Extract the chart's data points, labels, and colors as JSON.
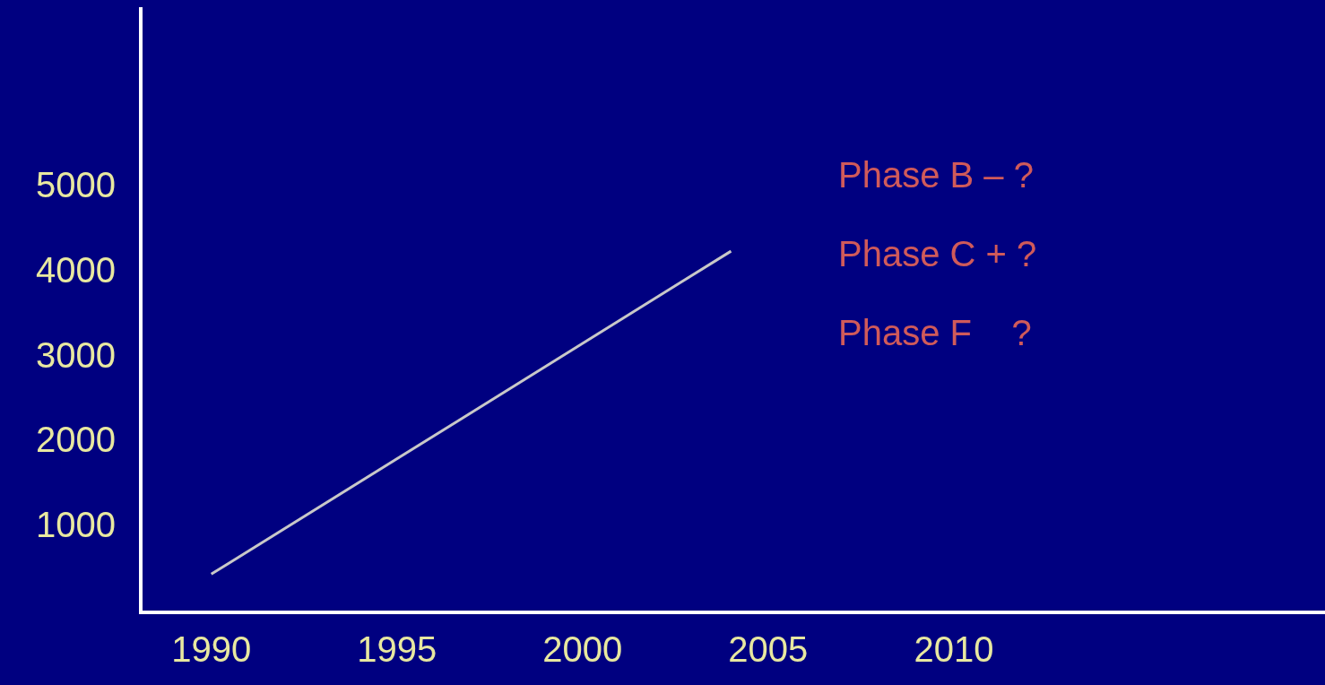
{
  "chart_data": {
    "type": "line",
    "x": [
      1990,
      2004
    ],
    "series": [
      {
        "color": "#c8c8c8",
        "values": [
          450,
          4250
        ]
      }
    ],
    "xlim": [
      1988.1,
      2020
    ],
    "xticks": [
      1990,
      1995,
      2000,
      2005,
      2010
    ],
    "ylim": [
      0,
      7100
    ],
    "yticks": [
      1000,
      2000,
      3000,
      4000,
      5000
    ],
    "annotations": [
      "Phase B – ?",
      "Phase C + ?",
      "Phase F    ?"
    ],
    "grid": false,
    "legend": false,
    "marker": "none",
    "line_style": "solid"
  }
}
